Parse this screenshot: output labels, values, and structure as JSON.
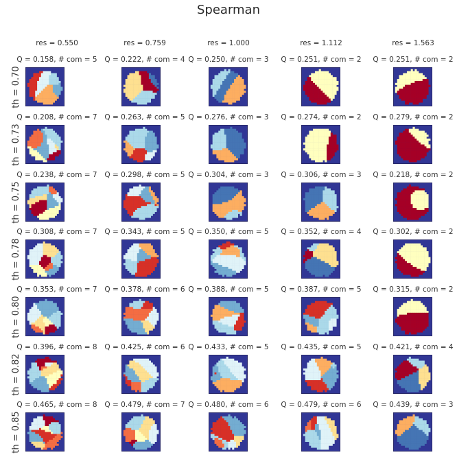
{
  "title": "Spearman",
  "chart_data": {
    "type": "heatmap",
    "title": "Spearman",
    "columns": [
      "res = 0.550",
      "res = 0.759",
      "res = 1.000",
      "res = 1.112",
      "res = 1.563"
    ],
    "rows": [
      "th = 0.70",
      "th = 0.73",
      "th = 0.75",
      "th = 0.78",
      "th = 0.80",
      "th = 0.82",
      "th = 0.85"
    ],
    "panels": [
      [
        {
          "label": "Q = 0.158,  # com = 5",
          "Q": 0.158,
          "com": 5
        },
        {
          "label": "Q = 0.222,  # com = 4",
          "Q": 0.222,
          "com": 4
        },
        {
          "label": "Q = 0.250,  # com = 3",
          "Q": 0.25,
          "com": 3
        },
        {
          "label": "Q = 0.251,  # com = 2",
          "Q": 0.251,
          "com": 2
        },
        {
          "label": "Q = 0.251,  # com = 2",
          "Q": 0.251,
          "com": 2
        }
      ],
      [
        {
          "label": "Q = 0.208,  # com = 7",
          "Q": 0.208,
          "com": 7
        },
        {
          "label": "Q = 0.263,  # com = 5",
          "Q": 0.263,
          "com": 5
        },
        {
          "label": "Q = 0.276,  # com = 3",
          "Q": 0.276,
          "com": 3
        },
        {
          "label": "Q = 0.274,  # com = 2",
          "Q": 0.274,
          "com": 2
        },
        {
          "label": "Q = 0.279,  # com = 2",
          "Q": 0.279,
          "com": 2
        }
      ],
      [
        {
          "label": "Q = 0.238,  # com = 7",
          "Q": 0.238,
          "com": 7
        },
        {
          "label": "Q = 0.298,  # com = 5",
          "Q": 0.298,
          "com": 5
        },
        {
          "label": "Q = 0.304,  # com = 3",
          "Q": 0.304,
          "com": 3
        },
        {
          "label": "Q = 0.306,  # com = 3",
          "Q": 0.306,
          "com": 3
        },
        {
          "label": "Q = 0.218,  # com = 2",
          "Q": 0.218,
          "com": 2
        }
      ],
      [
        {
          "label": "Q = 0.308,  # com = 7",
          "Q": 0.308,
          "com": 7
        },
        {
          "label": "Q = 0.343,  # com = 5",
          "Q": 0.343,
          "com": 5
        },
        {
          "label": "Q = 0.350,  # com = 5",
          "Q": 0.35,
          "com": 5
        },
        {
          "label": "Q = 0.352,  # com = 4",
          "Q": 0.352,
          "com": 4
        },
        {
          "label": "Q = 0.302,  # com = 2",
          "Q": 0.302,
          "com": 2
        }
      ],
      [
        {
          "label": "Q = 0.353,  # com = 7",
          "Q": 0.353,
          "com": 7
        },
        {
          "label": "Q = 0.378,  # com = 6",
          "Q": 0.378,
          "com": 6
        },
        {
          "label": "Q = 0.388,  # com = 5",
          "Q": 0.388,
          "com": 5
        },
        {
          "label": "Q = 0.387,  # com = 5",
          "Q": 0.387,
          "com": 5
        },
        {
          "label": "Q = 0.315,  # com = 2",
          "Q": 0.315,
          "com": 2
        }
      ],
      [
        {
          "label": "Q = 0.396,  # com = 8",
          "Q": 0.396,
          "com": 8
        },
        {
          "label": "Q = 0.425,  # com = 6",
          "Q": 0.425,
          "com": 6
        },
        {
          "label": "Q = 0.433,  # com = 5",
          "Q": 0.433,
          "com": 5
        },
        {
          "label": "Q = 0.435,  # com = 5",
          "Q": 0.435,
          "com": 5
        },
        {
          "label": "Q = 0.421,  # com = 4",
          "Q": 0.421,
          "com": 4
        }
      ],
      [
        {
          "label": "Q = 0.465,  # com = 8",
          "Q": 0.465,
          "com": 8
        },
        {
          "label": "Q = 0.479,  # com = 7",
          "Q": 0.479,
          "com": 7
        },
        {
          "label": "Q = 0.480,  # com = 6",
          "Q": 0.48,
          "com": 6
        },
        {
          "label": "Q = 0.479,  # com = 6",
          "Q": 0.479,
          "com": 6
        },
        {
          "label": "Q = 0.439,  # com = 3",
          "Q": 0.439,
          "com": 3
        }
      ]
    ],
    "background_color": "#313695",
    "colors": {
      "2": [
        "#a50026",
        "#ffffbf"
      ],
      "3": [
        "#fdae61",
        "#abd9e9",
        "#4575b4"
      ],
      "4": [
        "#a50026",
        "#fee090",
        "#abd9e9",
        "#4575b4"
      ],
      "5": [
        "#d73027",
        "#fdae61",
        "#e0f3f8",
        "#abd9e9",
        "#74add1"
      ],
      "6": [
        "#d73027",
        "#f46d43",
        "#fee090",
        "#e0f3f8",
        "#abd9e9",
        "#74add1"
      ],
      "7": [
        "#a50026",
        "#f46d43",
        "#fee090",
        "#ffffbf",
        "#e0f3f8",
        "#abd9e9",
        "#74add1"
      ],
      "8": [
        "#a50026",
        "#d73027",
        "#f46d43",
        "#fee090",
        "#ffffbf",
        "#e0f3f8",
        "#abd9e9",
        "#74add1"
      ]
    }
  }
}
